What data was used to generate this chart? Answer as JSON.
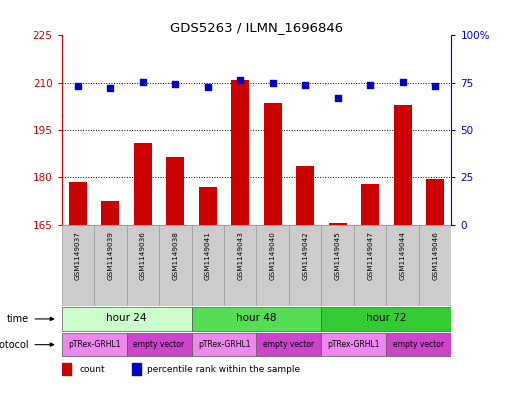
{
  "title": "GDS5263 / ILMN_1696846",
  "samples": [
    "GSM1149037",
    "GSM1149039",
    "GSM1149036",
    "GSM1149038",
    "GSM1149041",
    "GSM1149043",
    "GSM1149040",
    "GSM1149042",
    "GSM1149045",
    "GSM1149047",
    "GSM1149044",
    "GSM1149046"
  ],
  "counts": [
    178.5,
    172.5,
    191.0,
    186.5,
    177.0,
    211.0,
    203.5,
    183.5,
    165.5,
    178.0,
    203.0,
    179.5
  ],
  "percentile_ranks": [
    73.5,
    72.0,
    75.5,
    74.5,
    73.0,
    76.5,
    75.0,
    74.0,
    67.0,
    74.0,
    75.5,
    73.5
  ],
  "ylim_left": [
    165,
    225
  ],
  "ylim_right": [
    0,
    100
  ],
  "yticks_left": [
    165,
    180,
    195,
    210,
    225
  ],
  "yticks_right": [
    0,
    25,
    50,
    75,
    100
  ],
  "bar_color": "#cc0000",
  "dot_color": "#0000cc",
  "bg_color": "#ffffff",
  "time_groups": [
    {
      "label": "hour 24",
      "start": 0,
      "end": 4,
      "color": "#ccffcc"
    },
    {
      "label": "hour 48",
      "start": 4,
      "end": 8,
      "color": "#55dd55"
    },
    {
      "label": "hour 72",
      "start": 8,
      "end": 12,
      "color": "#33cc33"
    }
  ],
  "protocol_groups": [
    {
      "label": "pTRex-GRHL1",
      "start": 0,
      "end": 2,
      "color": "#ee88ee"
    },
    {
      "label": "empty vector",
      "start": 2,
      "end": 4,
      "color": "#cc44cc"
    },
    {
      "label": "pTRex-GRHL1",
      "start": 4,
      "end": 6,
      "color": "#ee88ee"
    },
    {
      "label": "empty vector",
      "start": 6,
      "end": 8,
      "color": "#cc44cc"
    },
    {
      "label": "pTRex-GRHL1",
      "start": 8,
      "end": 10,
      "color": "#ee88ee"
    },
    {
      "label": "empty vector",
      "start": 10,
      "end": 12,
      "color": "#cc44cc"
    }
  ],
  "tick_color_left": "#cc0000",
  "tick_color_right": "#0000cc",
  "sample_bg_color": "#cccccc",
  "sample_border_color": "#999999"
}
